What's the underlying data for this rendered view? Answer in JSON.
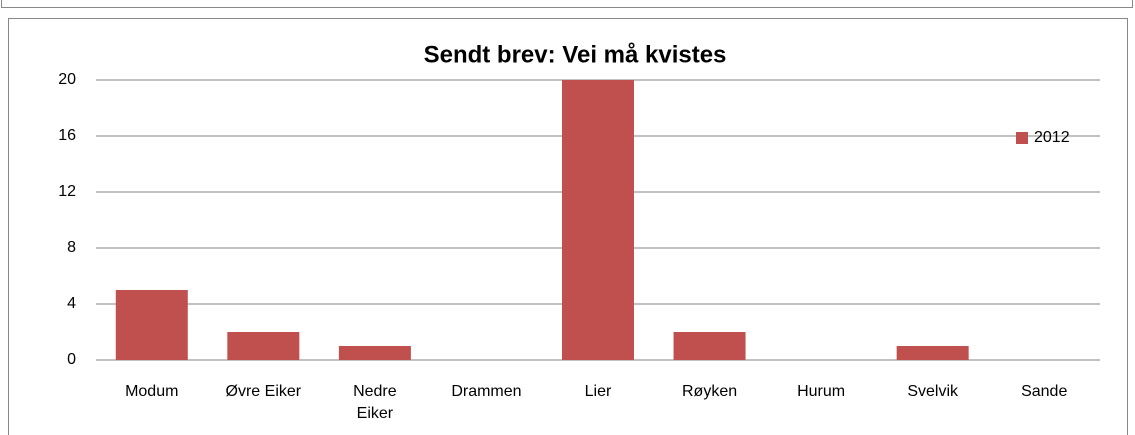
{
  "chart_data": {
    "type": "bar",
    "title": "Sendt brev: Vei må kvistes",
    "categories": [
      "Modum",
      "Øvre Eiker",
      "Nedre Eiker",
      "Drammen",
      "Lier",
      "Røyken",
      "Hurum",
      "Svelvik",
      "Sande"
    ],
    "series": [
      {
        "name": "2012",
        "color": "#c0504d",
        "values": [
          5,
          2,
          1,
          0,
          20,
          2,
          0,
          1,
          0
        ]
      }
    ],
    "ylim": [
      0,
      20
    ],
    "yticks": [
      0,
      4,
      8,
      12,
      16,
      20
    ],
    "grid": true,
    "legend": "right"
  }
}
